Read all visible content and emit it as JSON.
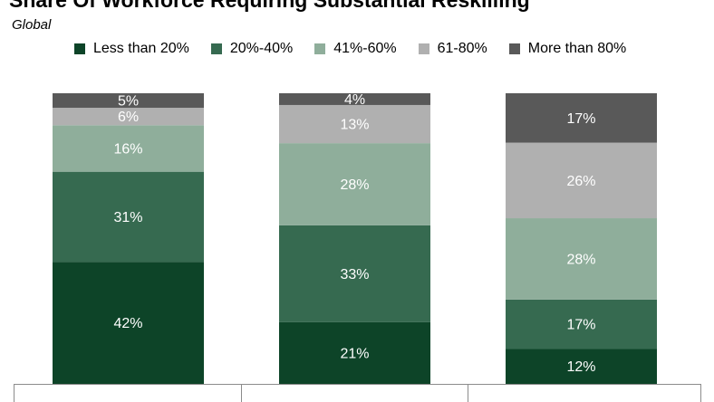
{
  "chart_data": {
    "type": "bar",
    "stacked": true,
    "normalized": true,
    "title": "Share Of Workforce Requiring Substantial Reskilling",
    "subtitle": "Global",
    "categories": [
      "",
      "",
      ""
    ],
    "series": [
      {
        "name": "Less than 20%",
        "color": "#0d4428",
        "values": [
          42,
          21,
          12
        ]
      },
      {
        "name": "20%-40%",
        "color": "#366a50",
        "values": [
          31,
          33,
          17
        ]
      },
      {
        "name": "41%-60%",
        "color": "#8fae9b",
        "values": [
          16,
          28,
          28
        ]
      },
      {
        "name": "61-80%",
        "color": "#b0b0b0",
        "values": [
          6,
          13,
          26
        ]
      },
      {
        "name": "More than 80%",
        "color": "#595959",
        "values": [
          5,
          4,
          17
        ]
      }
    ],
    "ylim": [
      0,
      100
    ],
    "grid": false,
    "legend": "top",
    "value_suffix": "%"
  }
}
